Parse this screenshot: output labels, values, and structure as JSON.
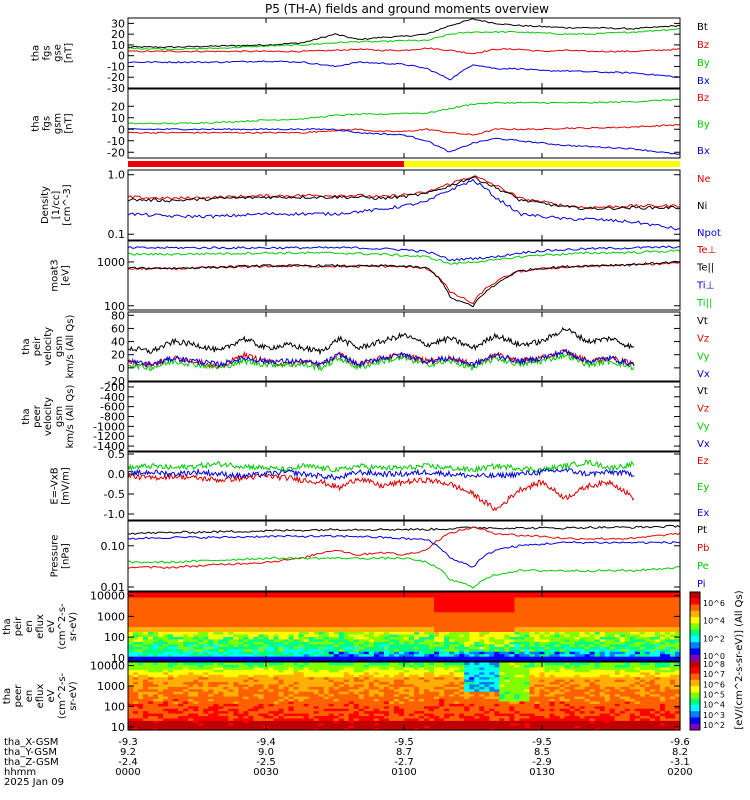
{
  "title": "P5 (TH-A) fields and ground moments overview",
  "colors": {
    "black": "#000000",
    "red": "#e00000",
    "green": "#00cc00",
    "blue": "#0000e0",
    "status_red": "#ee0000",
    "status_yellow": "#ffff00"
  },
  "chart_data": [
    {
      "type": "line",
      "ylabel_lines": [
        "tha",
        "fgs",
        "gse",
        "[nT]"
      ],
      "ylim": [
        -30,
        35
      ],
      "y_ticks": [
        "30",
        "20",
        "10",
        "0",
        "-10",
        "-20",
        "-30"
      ],
      "y_tick_values": [
        30,
        20,
        10,
        0,
        -10,
        -20,
        -30
      ],
      "series": [
        {
          "name": "Bt"
        },
        {
          "name": "Bz"
        },
        {
          "name": "By"
        },
        {
          "name": "Bx"
        }
      ],
      "x": [
        0,
        10,
        20,
        30,
        38,
        45,
        50,
        55,
        60,
        65,
        70,
        75,
        80,
        85,
        90,
        95,
        100,
        110,
        120
      ],
      "values": {
        "Bt": [
          8,
          8,
          9,
          10,
          12,
          20,
          15,
          17,
          18,
          20,
          28,
          34,
          30,
          28,
          27,
          26,
          26,
          25,
          28
        ],
        "Bz": [
          4,
          4,
          4,
          4,
          4,
          5,
          6,
          5,
          5,
          7,
          5,
          2,
          6,
          6,
          4,
          5,
          4,
          4,
          6
        ],
        "By": [
          7,
          6,
          7,
          9,
          10,
          12,
          13,
          13,
          14,
          14,
          20,
          22,
          22,
          22,
          21,
          20,
          20,
          22,
          25
        ],
        "Bx": [
          -6,
          -6,
          -6,
          -5,
          -6,
          -10,
          -6,
          -7,
          -8,
          -12,
          -22,
          -8,
          -12,
          -12,
          -14,
          -14,
          -15,
          -16,
          -20
        ]
      }
    },
    {
      "type": "line",
      "ylabel_lines": [
        "tha",
        "fgs",
        "gsm",
        "[nT]"
      ],
      "ylim": [
        -25,
        35
      ],
      "y_ticks": [
        "20",
        "10",
        "0",
        "-10",
        "-20"
      ],
      "y_tick_values": [
        20,
        10,
        0,
        -10,
        -20
      ],
      "series": [
        {
          "name": "Bz"
        },
        {
          "name": "By"
        },
        {
          "name": "Bx"
        }
      ],
      "x": [
        0,
        10,
        20,
        30,
        38,
        45,
        50,
        55,
        60,
        65,
        70,
        75,
        80,
        85,
        90,
        95,
        100,
        110,
        120
      ],
      "values": {
        "Bz": [
          -3,
          -3,
          -3,
          -3,
          -3,
          -1,
          0,
          -2,
          -2,
          0,
          -3,
          -5,
          0,
          0,
          0,
          1,
          1,
          2,
          4
        ],
        "By": [
          5,
          5,
          6,
          8,
          9,
          12,
          13,
          13,
          14,
          14,
          18,
          22,
          23,
          23,
          23,
          23,
          23,
          24,
          26
        ],
        "Bx": [
          0,
          0,
          0,
          0,
          0,
          0,
          -3,
          -4,
          -5,
          -10,
          -20,
          -12,
          -8,
          -10,
          -12,
          -14,
          -15,
          -17,
          -22
        ]
      }
    },
    {
      "type": "line",
      "ylabel_lines": [
        "Density",
        "[1/cc]",
        "[cm^-3]"
      ],
      "y_scale": "log",
      "ylim": [
        0.08,
        1.2
      ],
      "y_ticks": [
        "1.0",
        "0.1"
      ],
      "y_tick_values": [
        1.0,
        0.1
      ],
      "series": [
        {
          "name": "Ne"
        },
        {
          "name": "Ni"
        },
        {
          "name": "Npot"
        }
      ],
      "x": [
        0,
        10,
        20,
        30,
        38,
        45,
        50,
        55,
        60,
        65,
        70,
        75,
        80,
        85,
        90,
        95,
        100,
        110,
        120
      ],
      "values": {
        "Ne": [
          0.42,
          0.4,
          0.42,
          0.44,
          0.45,
          0.45,
          0.45,
          0.42,
          0.46,
          0.5,
          0.7,
          0.95,
          0.65,
          0.4,
          0.35,
          0.3,
          0.28,
          0.3,
          0.3
        ],
        "Ni": [
          0.38,
          0.37,
          0.4,
          0.42,
          0.42,
          0.42,
          0.42,
          0.4,
          0.43,
          0.48,
          0.65,
          0.9,
          0.6,
          0.38,
          0.33,
          0.29,
          0.27,
          0.28,
          0.28
        ],
        "Npot": [
          0.22,
          0.2,
          0.2,
          0.22,
          0.22,
          0.22,
          0.24,
          0.26,
          0.3,
          0.35,
          0.55,
          0.8,
          0.4,
          0.22,
          0.2,
          0.18,
          0.18,
          0.16,
          0.12
        ]
      }
    },
    {
      "type": "line",
      "ylabel_lines": [
        "moat3",
        "[eV]"
      ],
      "y_scale": "log",
      "ylim": [
        80,
        3000
      ],
      "y_ticks": [
        "1000",
        "100"
      ],
      "y_tick_values": [
        1000,
        100
      ],
      "series": [
        {
          "name": "Te⊥"
        },
        {
          "name": "Te||"
        },
        {
          "name": "Ti⊥"
        },
        {
          "name": "Ti||"
        }
      ],
      "x": [
        0,
        10,
        20,
        30,
        38,
        45,
        50,
        55,
        60,
        65,
        70,
        75,
        80,
        85,
        90,
        95,
        100,
        110,
        120
      ],
      "values": {
        "Te⊥": [
          700,
          700,
          750,
          800,
          800,
          800,
          780,
          800,
          780,
          700,
          200,
          110,
          350,
          600,
          700,
          750,
          800,
          850,
          950
        ],
        "Te||": [
          720,
          720,
          760,
          820,
          820,
          820,
          800,
          820,
          800,
          720,
          150,
          95,
          300,
          620,
          720,
          780,
          820,
          880,
          1000
        ],
        "Ti⊥": [
          2100,
          2100,
          2100,
          2100,
          2100,
          2100,
          2100,
          2000,
          1900,
          1700,
          1100,
          1200,
          1300,
          1600,
          1800,
          1900,
          2000,
          2100,
          2200
        ],
        "Ti||": [
          1500,
          1500,
          1550,
          1600,
          1600,
          1600,
          1550,
          1500,
          1400,
          1300,
          900,
          1000,
          1100,
          1300,
          1450,
          1500,
          1600,
          1650,
          1800
        ]
      }
    },
    {
      "type": "line",
      "ylabel_lines": [
        "tha",
        "peir",
        "velocity",
        "gsm",
        "km/s (All Qs)"
      ],
      "ylim": [
        -20,
        85
      ],
      "y_ticks": [
        "80",
        "60",
        "40",
        "20",
        "0",
        "-20"
      ],
      "y_tick_values": [
        80,
        60,
        40,
        20,
        0,
        -20
      ],
      "series": [
        {
          "name": "Vt"
        },
        {
          "name": "Vz"
        },
        {
          "name": "Vy"
        },
        {
          "name": "Vx"
        }
      ],
      "x": [
        0,
        5,
        10,
        15,
        20,
        25,
        30,
        35,
        38,
        42,
        46,
        50,
        55,
        60,
        65,
        70,
        75,
        80,
        85,
        90,
        95,
        100,
        105,
        110
      ],
      "values": {
        "Vt": [
          30,
          25,
          40,
          35,
          25,
          45,
          30,
          35,
          30,
          25,
          45,
          30,
          40,
          50,
          35,
          45,
          30,
          50,
          35,
          40,
          60,
          40,
          45,
          30
        ],
        "Vz": [
          10,
          5,
          15,
          10,
          0,
          20,
          10,
          5,
          10,
          5,
          20,
          5,
          15,
          20,
          10,
          15,
          5,
          20,
          10,
          15,
          25,
          10,
          15,
          5
        ],
        "Vy": [
          5,
          0,
          10,
          5,
          0,
          10,
          5,
          5,
          5,
          0,
          15,
          0,
          10,
          15,
          5,
          10,
          0,
          15,
          5,
          10,
          20,
          5,
          10,
          0
        ],
        "Vx": [
          10,
          5,
          15,
          10,
          5,
          15,
          10,
          10,
          10,
          5,
          20,
          5,
          15,
          20,
          10,
          15,
          5,
          20,
          10,
          15,
          25,
          10,
          15,
          5
        ]
      }
    },
    {
      "type": "line",
      "ylabel_lines": [
        "tha",
        "peer",
        "velocity",
        "gsm",
        "km/s (All Qs)"
      ],
      "ylim": [
        -1500,
        -100
      ],
      "y_ticks": [
        "-200",
        "-400",
        "-600",
        "-800",
        "-1000",
        "-1200",
        "-1400"
      ],
      "y_tick_values": [
        -200,
        -400,
        -600,
        -800,
        -1000,
        -1200,
        -1400
      ],
      "series": [
        {
          "name": "Vt"
        },
        {
          "name": "Vz"
        },
        {
          "name": "Vy"
        },
        {
          "name": "Vx"
        }
      ],
      "x": [],
      "values": {}
    },
    {
      "type": "line",
      "ylabel_lines": [
        "E=-VxB",
        "[mV/m]"
      ],
      "ylim": [
        -1.15,
        0.55
      ],
      "y_ticks": [
        "0.5",
        "0.0",
        "-0.5",
        "-1.0"
      ],
      "y_tick_values": [
        0.5,
        0.0,
        -0.5,
        -1.0
      ],
      "series": [
        {
          "name": "Ez"
        },
        {
          "name": "Ey"
        },
        {
          "name": "Ex"
        }
      ],
      "x": [
        0,
        5,
        10,
        15,
        20,
        25,
        30,
        35,
        38,
        42,
        46,
        50,
        55,
        60,
        65,
        70,
        75,
        80,
        85,
        90,
        95,
        100,
        105,
        110
      ],
      "values": {
        "Ez": [
          -0.05,
          -0.1,
          -0.05,
          -0.1,
          -0.15,
          -0.1,
          -0.05,
          -0.1,
          -0.15,
          -0.2,
          -0.35,
          -0.1,
          -0.3,
          -0.2,
          -0.15,
          -0.25,
          -0.5,
          -0.9,
          -0.4,
          -0.2,
          -0.6,
          -0.3,
          -0.2,
          -0.6
        ],
        "Ey": [
          0.15,
          0.2,
          0.15,
          0.2,
          0.25,
          0.2,
          0.15,
          0.1,
          0.2,
          0.15,
          0.1,
          0.2,
          0.15,
          0.15,
          0.2,
          0.15,
          0.1,
          0.2,
          0.15,
          0.1,
          0.2,
          0.3,
          0.15,
          0.25
        ],
        "Ex": [
          0.0,
          0.05,
          0.0,
          0.05,
          0.0,
          -0.05,
          0.0,
          0.05,
          0.0,
          -0.05,
          -0.1,
          0.05,
          0.0,
          0.0,
          0.05,
          0.0,
          -0.05,
          -0.05,
          0.0,
          0.05,
          0.1,
          0.0,
          0.05,
          0.0
        ]
      }
    },
    {
      "type": "line",
      "ylabel_lines": [
        "Pressure",
        "[nPa]"
      ],
      "y_scale": "log",
      "ylim": [
        0.008,
        0.4
      ],
      "y_ticks": [
        "0.10",
        "0.01"
      ],
      "y_tick_values": [
        0.1,
        0.01
      ],
      "series": [
        {
          "name": "Pt"
        },
        {
          "name": "Pb"
        },
        {
          "name": "Pe"
        },
        {
          "name": "Pi"
        }
      ],
      "x": [
        0,
        10,
        20,
        30,
        38,
        45,
        50,
        55,
        60,
        65,
        70,
        75,
        80,
        85,
        90,
        95,
        100,
        110,
        120
      ],
      "values": {
        "Pt": [
          0.2,
          0.21,
          0.22,
          0.23,
          0.24,
          0.25,
          0.25,
          0.25,
          0.25,
          0.25,
          0.26,
          0.28,
          0.27,
          0.27,
          0.27,
          0.27,
          0.28,
          0.28,
          0.3
        ],
        "Pb": [
          0.03,
          0.03,
          0.035,
          0.04,
          0.05,
          0.08,
          0.06,
          0.07,
          0.06,
          0.08,
          0.2,
          0.28,
          0.2,
          0.18,
          0.17,
          0.15,
          0.15,
          0.15,
          0.2
        ],
        "Pe": [
          0.04,
          0.04,
          0.045,
          0.05,
          0.05,
          0.05,
          0.05,
          0.05,
          0.05,
          0.04,
          0.015,
          0.01,
          0.02,
          0.025,
          0.025,
          0.025,
          0.025,
          0.025,
          0.03
        ],
        "Pi": [
          0.15,
          0.16,
          0.16,
          0.17,
          0.17,
          0.17,
          0.17,
          0.16,
          0.15,
          0.14,
          0.05,
          0.03,
          0.08,
          0.1,
          0.11,
          0.12,
          0.12,
          0.12,
          0.12
        ]
      }
    },
    {
      "type": "heatmap",
      "ylabel_lines": [
        "tha",
        "peir",
        "en",
        "eflux",
        "eV",
        "(cm^2-s-",
        "sr-eV)"
      ],
      "y_scale": "log",
      "ylim": [
        7,
        15000
      ],
      "y_ticks": [
        "10000",
        "1000",
        "100",
        "10"
      ],
      "y_tick_values": [
        10000,
        1000,
        100,
        10
      ]
    },
    {
      "type": "heatmap",
      "ylabel_lines": [
        "tha",
        "peer",
        "en",
        "eflux",
        "eV",
        "(cm^2-s-",
        "sr-eV)"
      ],
      "y_scale": "log",
      "ylim": [
        7,
        15000
      ],
      "y_ticks": [
        "10000",
        "1000",
        "100",
        "10"
      ],
      "y_tick_values": [
        10000,
        1000,
        100,
        10
      ]
    }
  ],
  "colorbar": {
    "label": "[eV/(cm^2-s-sr-eV)] (All Qs)",
    "ticks_top": [
      "10^6",
      "10^4",
      "10^2",
      "10^0"
    ],
    "ticks_bottom": [
      "10^8",
      "10^7",
      "10^6",
      "10^5",
      "10^4",
      "10^3",
      "10^2"
    ]
  },
  "status_bar": {
    "segments": [
      {
        "from": 0,
        "to": 60,
        "color": "#ee0000"
      },
      {
        "from": 60,
        "to": 120,
        "color": "#ffff00"
      }
    ]
  },
  "x_axis": {
    "xlim": [
      0,
      120
    ],
    "row_labels": [
      "tha_X-GSM",
      "tha_Y-GSM",
      "tha_Z-GSM",
      "hhmm",
      "2025 Jan 09"
    ],
    "ticks": [
      {
        "x": 0,
        "values": [
          "-9.3",
          "9.2",
          "-2.4",
          "0000"
        ]
      },
      {
        "x": 30,
        "values": [
          "-9.4",
          "9.0",
          "-2.5",
          "0030"
        ]
      },
      {
        "x": 60,
        "values": [
          "-9.5",
          "8.7",
          "-2.7",
          "0100"
        ]
      },
      {
        "x": 90,
        "values": [
          "-9.5",
          "8.5",
          "-2.9",
          "0130"
        ]
      },
      {
        "x": 120,
        "values": [
          "-9.6",
          "8.2",
          "-3.1",
          "0200"
        ]
      }
    ]
  }
}
